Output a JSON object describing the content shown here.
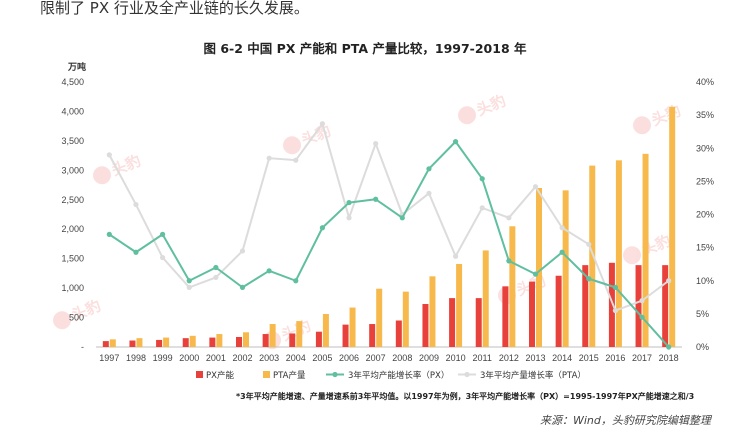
{
  "intro_text": "限制了 PX 行业及全产业链的长久发展。",
  "chart_title": "图  6-2  中国 PX 产能和 PTA 产量比较，1997-2018 年",
  "note": "*3年平均产能增速、产量增速系前3年平均值。以1997年为例，3年平均产能增长率（PX）=1995-1997年PX产能增速之和/3",
  "source": "来源：Wind，头豹研究院编辑整理",
  "watermark": "头豹",
  "colors": {
    "px_bar": "#e8403a",
    "pta_bar": "#f7b94c",
    "px_line": "#5fbf9f",
    "pta_line": "#dcdcdc"
  },
  "chart_data": {
    "type": "bar",
    "title": "图  6-2  中国 PX 产能和 PTA 产量比较，1997-2018 年",
    "ylabel_left": "万吨",
    "ylim_left": [
      0,
      4500
    ],
    "yticks_left": [
      "-",
      "500",
      "1,000",
      "1,500",
      "2,000",
      "2,500",
      "3,000",
      "3,500",
      "4,000",
      "4,500"
    ],
    "ylim_right": [
      0,
      40
    ],
    "yticks_right": [
      "0%",
      "5%",
      "10%",
      "15%",
      "20%",
      "25%",
      "30%",
      "35%",
      "40%"
    ],
    "categories": [
      "1997",
      "1998",
      "1999",
      "2000",
      "2001",
      "2002",
      "2003",
      "2004",
      "2005",
      "2006",
      "2007",
      "2008",
      "2009",
      "2010",
      "2011",
      "2012",
      "2013",
      "2014",
      "2015",
      "2016",
      "2017",
      "2018"
    ],
    "legend_position": "bottom",
    "series": [
      {
        "name": "PX产能",
        "kind": "bar",
        "axis": "left",
        "values": [
          100,
          110,
          120,
          150,
          160,
          170,
          220,
          230,
          260,
          380,
          390,
          450,
          730,
          830,
          830,
          1030,
          1110,
          1210,
          1390,
          1430,
          1390,
          1390
        ]
      },
      {
        "name": "PTA产量",
        "kind": "bar",
        "axis": "left",
        "values": [
          130,
          150,
          160,
          190,
          220,
          250,
          390,
          440,
          560,
          670,
          990,
          940,
          1200,
          1410,
          1640,
          2050,
          2700,
          2660,
          3080,
          3170,
          3280,
          4080
        ]
      },
      {
        "name": "3年平均产能增长率（PX）",
        "kind": "line",
        "axis": "right",
        "values": [
          17.0,
          14.3,
          17.0,
          10.0,
          12.0,
          9.0,
          11.5,
          10.0,
          18.0,
          21.8,
          22.3,
          19.5,
          26.9,
          31.0,
          25.4,
          13.0,
          11.0,
          14.3,
          10.3,
          9.0,
          4.5,
          0.0
        ]
      },
      {
        "name": "3年平均产量增长率（PTA）",
        "kind": "line",
        "axis": "right",
        "values": [
          29.0,
          21.5,
          13.5,
          9.0,
          10.5,
          14.5,
          28.5,
          28.2,
          33.7,
          19.5,
          30.7,
          20.0,
          23.2,
          13.7,
          21.0,
          19.5,
          24.2,
          18.0,
          15.5,
          5.5,
          7.0,
          10.0
        ]
      }
    ]
  }
}
